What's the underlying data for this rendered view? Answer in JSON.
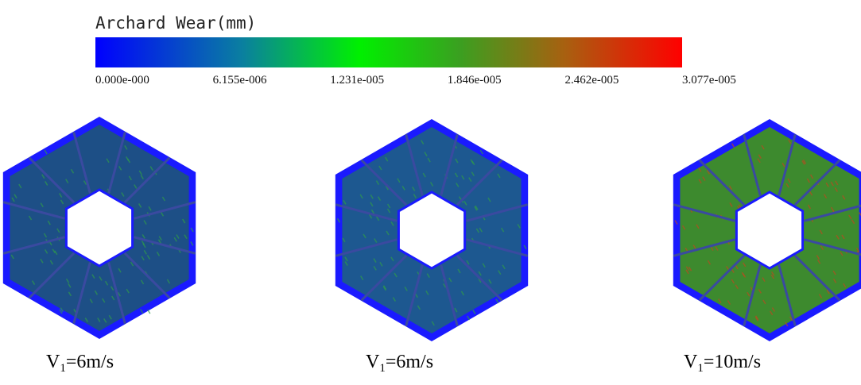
{
  "colorbar": {
    "title": "Archard Wear(mm)",
    "ticks": [
      {
        "value": 0,
        "label": "0.000e-000"
      },
      {
        "value": 6.155e-06,
        "label": "6.155e-006"
      },
      {
        "value": 1.231e-05,
        "label": "1.231e-005"
      },
      {
        "value": 1.846e-05,
        "label": "1.846e-005"
      },
      {
        "value": 2.462e-05,
        "label": "2.462e-005"
      },
      {
        "value": 3.077e-05,
        "label": "3.077e-005"
      }
    ]
  },
  "panels": [
    {
      "label": {
        "base": "V",
        "sub": "1",
        "rest": "=6m/s"
      }
    },
    {
      "label": {
        "base": "V",
        "sub": "1",
        "rest": "=6m/s"
      }
    },
    {
      "label": {
        "base": "V",
        "sub": "1",
        "rest": "=10m/s"
      }
    }
  ]
}
